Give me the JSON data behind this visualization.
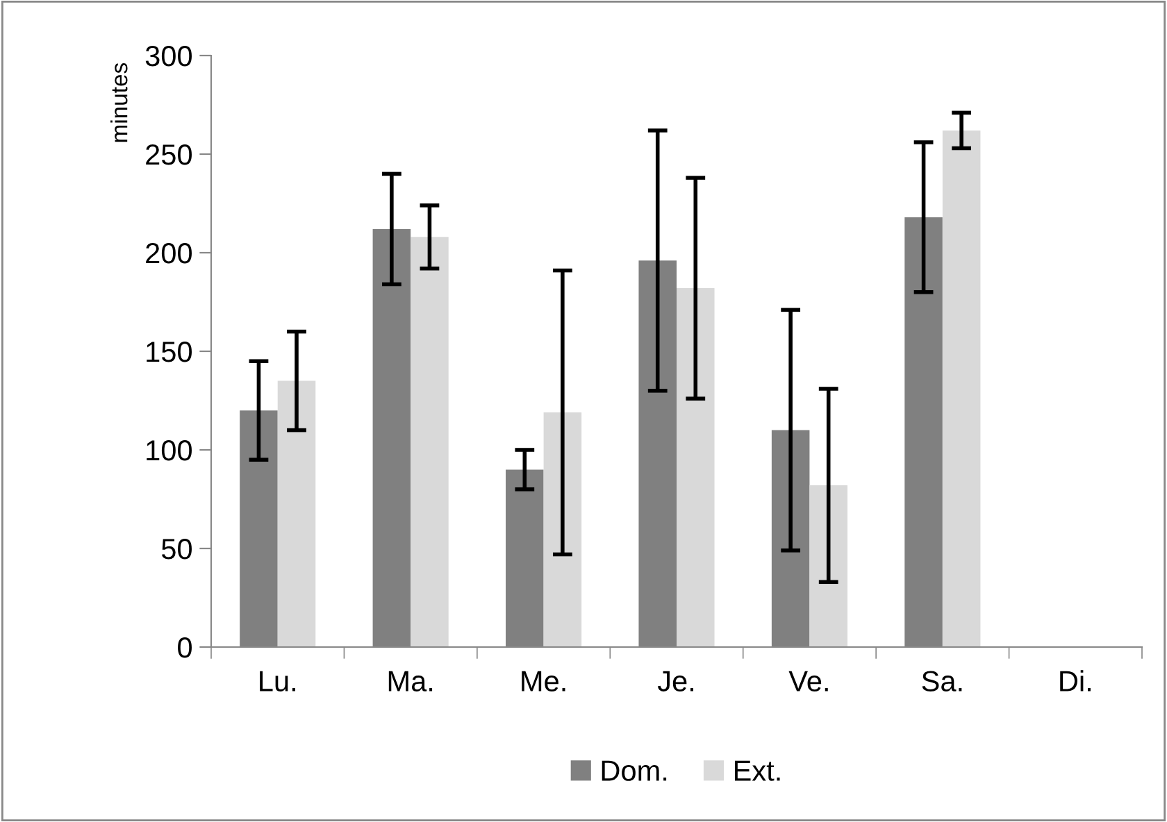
{
  "chart_data": {
    "type": "bar",
    "ylabel": "minutes",
    "categories": [
      "Lu.",
      "Ma.",
      "Me.",
      "Je.",
      "Ve.",
      "Sa.",
      "Di."
    ],
    "series": [
      {
        "name": "Dom.",
        "color": "#808080",
        "values": [
          120,
          212,
          90,
          196,
          110,
          218,
          0
        ],
        "errors": [
          25,
          28,
          10,
          66,
          61,
          38,
          null
        ]
      },
      {
        "name": "Ext.",
        "color": "#d9d9d9",
        "values": [
          135,
          208,
          119,
          182,
          82,
          262,
          0
        ],
        "errors": [
          25,
          16,
          72,
          56,
          49,
          9,
          null
        ]
      }
    ],
    "ylim": [
      0,
      300
    ],
    "yticks": [
      0,
      50,
      100,
      150,
      200,
      250,
      300
    ],
    "grid": false,
    "legend": "bottom"
  }
}
